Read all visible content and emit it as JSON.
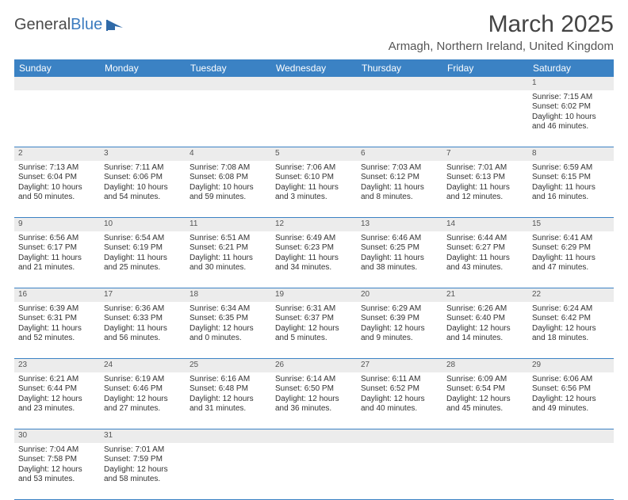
{
  "brand": {
    "part1": "General",
    "part2": "Blue"
  },
  "title": "March 2025",
  "location": "Armagh, Northern Ireland, United Kingdom",
  "colors": {
    "header_bg": "#3b82c4",
    "header_text": "#ffffff",
    "daynum_bg": "#ececec",
    "border": "#3b82c4",
    "text": "#333333",
    "brand_gray": "#4a4a4a",
    "brand_blue": "#3b7bbf"
  },
  "day_headers": [
    "Sunday",
    "Monday",
    "Tuesday",
    "Wednesday",
    "Thursday",
    "Friday",
    "Saturday"
  ],
  "weeks": [
    [
      null,
      null,
      null,
      null,
      null,
      null,
      {
        "n": "1",
        "sunrise": "7:15 AM",
        "sunset": "6:02 PM",
        "daylight": "10 hours and 46 minutes."
      }
    ],
    [
      {
        "n": "2",
        "sunrise": "7:13 AM",
        "sunset": "6:04 PM",
        "daylight": "10 hours and 50 minutes."
      },
      {
        "n": "3",
        "sunrise": "7:11 AM",
        "sunset": "6:06 PM",
        "daylight": "10 hours and 54 minutes."
      },
      {
        "n": "4",
        "sunrise": "7:08 AM",
        "sunset": "6:08 PM",
        "daylight": "10 hours and 59 minutes."
      },
      {
        "n": "5",
        "sunrise": "7:06 AM",
        "sunset": "6:10 PM",
        "daylight": "11 hours and 3 minutes."
      },
      {
        "n": "6",
        "sunrise": "7:03 AM",
        "sunset": "6:12 PM",
        "daylight": "11 hours and 8 minutes."
      },
      {
        "n": "7",
        "sunrise": "7:01 AM",
        "sunset": "6:13 PM",
        "daylight": "11 hours and 12 minutes."
      },
      {
        "n": "8",
        "sunrise": "6:59 AM",
        "sunset": "6:15 PM",
        "daylight": "11 hours and 16 minutes."
      }
    ],
    [
      {
        "n": "9",
        "sunrise": "6:56 AM",
        "sunset": "6:17 PM",
        "daylight": "11 hours and 21 minutes."
      },
      {
        "n": "10",
        "sunrise": "6:54 AM",
        "sunset": "6:19 PM",
        "daylight": "11 hours and 25 minutes."
      },
      {
        "n": "11",
        "sunrise": "6:51 AM",
        "sunset": "6:21 PM",
        "daylight": "11 hours and 30 minutes."
      },
      {
        "n": "12",
        "sunrise": "6:49 AM",
        "sunset": "6:23 PM",
        "daylight": "11 hours and 34 minutes."
      },
      {
        "n": "13",
        "sunrise": "6:46 AM",
        "sunset": "6:25 PM",
        "daylight": "11 hours and 38 minutes."
      },
      {
        "n": "14",
        "sunrise": "6:44 AM",
        "sunset": "6:27 PM",
        "daylight": "11 hours and 43 minutes."
      },
      {
        "n": "15",
        "sunrise": "6:41 AM",
        "sunset": "6:29 PM",
        "daylight": "11 hours and 47 minutes."
      }
    ],
    [
      {
        "n": "16",
        "sunrise": "6:39 AM",
        "sunset": "6:31 PM",
        "daylight": "11 hours and 52 minutes."
      },
      {
        "n": "17",
        "sunrise": "6:36 AM",
        "sunset": "6:33 PM",
        "daylight": "11 hours and 56 minutes."
      },
      {
        "n": "18",
        "sunrise": "6:34 AM",
        "sunset": "6:35 PM",
        "daylight": "12 hours and 0 minutes."
      },
      {
        "n": "19",
        "sunrise": "6:31 AM",
        "sunset": "6:37 PM",
        "daylight": "12 hours and 5 minutes."
      },
      {
        "n": "20",
        "sunrise": "6:29 AM",
        "sunset": "6:39 PM",
        "daylight": "12 hours and 9 minutes."
      },
      {
        "n": "21",
        "sunrise": "6:26 AM",
        "sunset": "6:40 PM",
        "daylight": "12 hours and 14 minutes."
      },
      {
        "n": "22",
        "sunrise": "6:24 AM",
        "sunset": "6:42 PM",
        "daylight": "12 hours and 18 minutes."
      }
    ],
    [
      {
        "n": "23",
        "sunrise": "6:21 AM",
        "sunset": "6:44 PM",
        "daylight": "12 hours and 23 minutes."
      },
      {
        "n": "24",
        "sunrise": "6:19 AM",
        "sunset": "6:46 PM",
        "daylight": "12 hours and 27 minutes."
      },
      {
        "n": "25",
        "sunrise": "6:16 AM",
        "sunset": "6:48 PM",
        "daylight": "12 hours and 31 minutes."
      },
      {
        "n": "26",
        "sunrise": "6:14 AM",
        "sunset": "6:50 PM",
        "daylight": "12 hours and 36 minutes."
      },
      {
        "n": "27",
        "sunrise": "6:11 AM",
        "sunset": "6:52 PM",
        "daylight": "12 hours and 40 minutes."
      },
      {
        "n": "28",
        "sunrise": "6:09 AM",
        "sunset": "6:54 PM",
        "daylight": "12 hours and 45 minutes."
      },
      {
        "n": "29",
        "sunrise": "6:06 AM",
        "sunset": "6:56 PM",
        "daylight": "12 hours and 49 minutes."
      }
    ],
    [
      {
        "n": "30",
        "sunrise": "7:04 AM",
        "sunset": "7:58 PM",
        "daylight": "12 hours and 53 minutes."
      },
      {
        "n": "31",
        "sunrise": "7:01 AM",
        "sunset": "7:59 PM",
        "daylight": "12 hours and 58 minutes."
      },
      null,
      null,
      null,
      null,
      null
    ]
  ],
  "labels": {
    "sunrise": "Sunrise: ",
    "sunset": "Sunset: ",
    "daylight": "Daylight: "
  }
}
